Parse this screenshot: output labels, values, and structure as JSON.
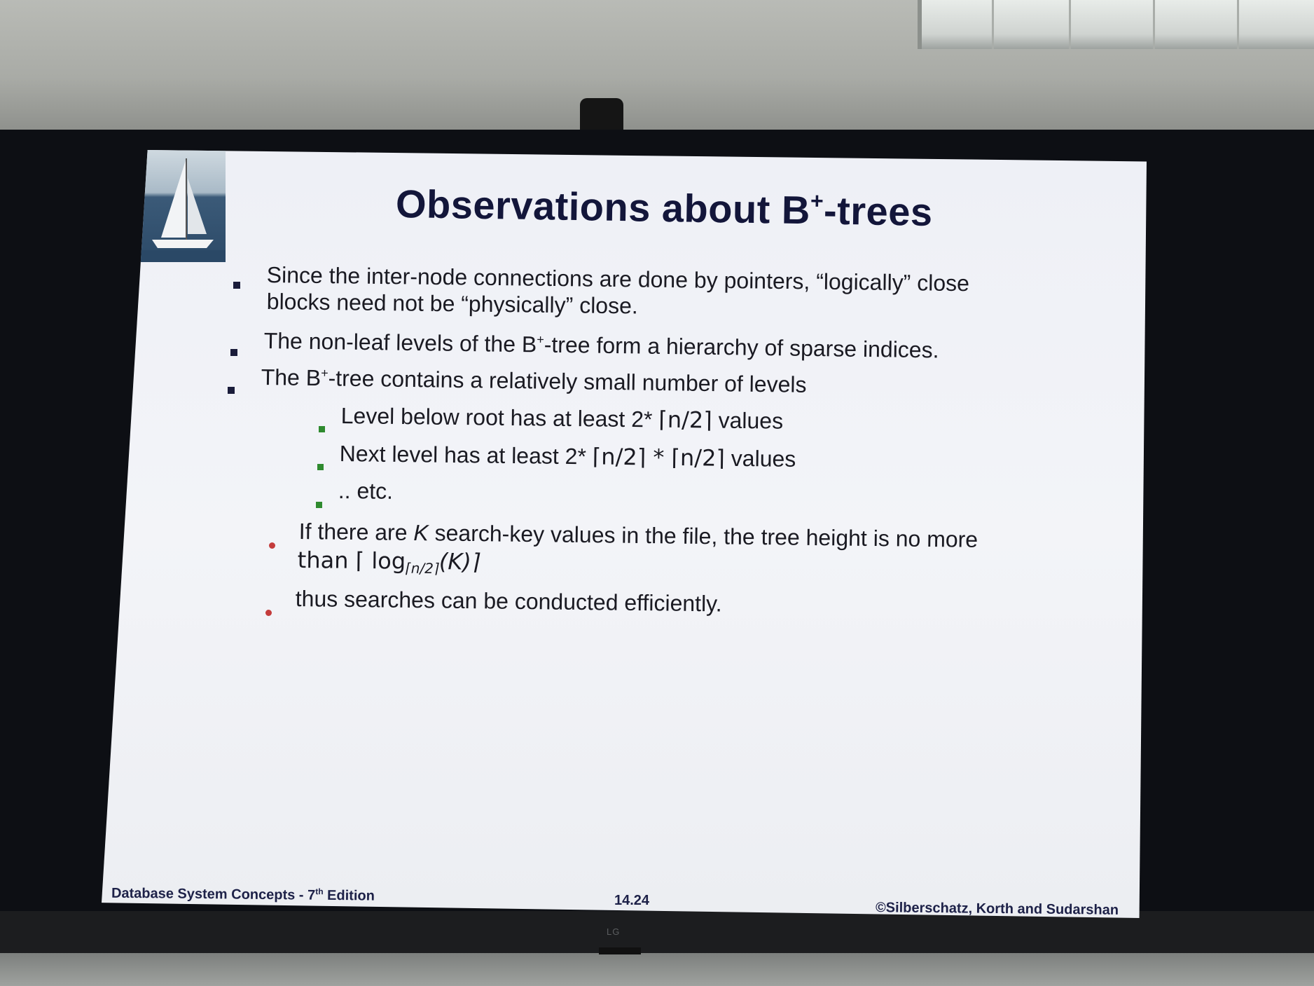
{
  "slide": {
    "title_main": "Observations about B",
    "title_sup": "+",
    "title_tail": "-trees",
    "bullets": [
      {
        "line1": "Since the inter-node connections are done by pointers, “logically” close",
        "line2": "blocks need not be “physically” close."
      },
      {
        "pre": "The non-leaf levels of the B",
        "sup": "+",
        "post": "-tree form a hierarchy of sparse indices."
      },
      {
        "pre": "The B",
        "sup": "+",
        "post": "-tree contains a relatively small number of levels"
      }
    ],
    "sub_bullets": [
      {
        "pre": "Level below root has at least 2* ",
        "expr": "⌈n/2⌉",
        "post": " values"
      },
      {
        "pre": "Next level has at least 2* ",
        "expr": "⌈n/2⌉ * ⌈n/2⌉",
        "post": " values"
      },
      {
        "text": ".. etc."
      }
    ],
    "dot_bullets": [
      {
        "pre": "If there are ",
        "k": "K",
        "post": " search-key values in the file, the tree height is no more",
        "line2_pre": "than ⌈ log",
        "line2_sub": "⌈n/2⌉",
        "line2_post": "(K)⌉"
      },
      {
        "text": "thus searches can be conducted efficiently."
      }
    ],
    "footer": {
      "left_pre": "Database System Concepts - 7",
      "left_sup": "th",
      "left_post": " Edition",
      "center": "14.24",
      "right": "©Silberschatz, Korth and Sudarshan"
    }
  },
  "monitor": {
    "brand": "LG"
  },
  "colors": {
    "title": "#13163a",
    "body": "#1a1a22",
    "footer": "#1d2148",
    "green_bullet": "#2f8a2f",
    "red_bullet": "#c43c3c"
  }
}
